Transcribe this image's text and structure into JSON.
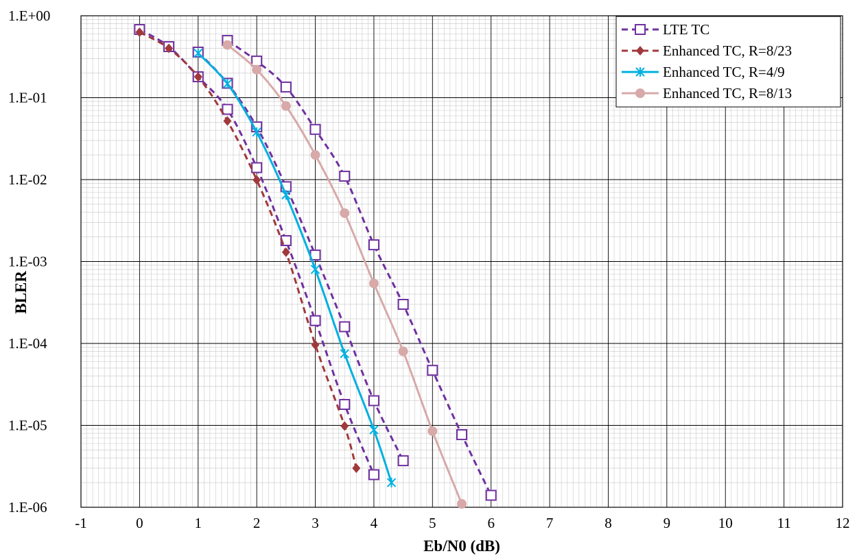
{
  "chart_data": {
    "type": "line",
    "title": "",
    "xlabel": "Eb/N0 (dB)",
    "ylabel": "BLER",
    "xscale": "linear",
    "yscale": "log",
    "xlim": [
      -1,
      12
    ],
    "ylim": [
      1e-06,
      1
    ],
    "x_ticks": [
      "-1",
      "0",
      "1",
      "2",
      "3",
      "4",
      "5",
      "6",
      "7",
      "8",
      "9",
      "10",
      "11",
      "12"
    ],
    "y_ticks": [
      "1.E-06",
      "1.E-05",
      "1.E-04",
      "1.E-03",
      "1.E-02",
      "1.E-01",
      "1.E+00"
    ],
    "grid": "major and minor",
    "legend_position": "top-right",
    "series": [
      {
        "name": "LTE TC",
        "color": "#7030A0",
        "line": "dashed",
        "marker": "open-square",
        "curves": [
          [
            [
              0,
              0.68
            ],
            [
              0.5,
              0.42
            ],
            [
              1,
              0.18
            ],
            [
              1.5,
              0.072
            ],
            [
              2,
              0.014
            ],
            [
              2.5,
              0.0018
            ],
            [
              3,
              0.00019
            ],
            [
              3.5,
              1.8e-05
            ],
            [
              4,
              2.5e-06
            ]
          ],
          [
            [
              1,
              0.36
            ],
            [
              1.5,
              0.15
            ],
            [
              2,
              0.044
            ],
            [
              2.5,
              0.0082
            ],
            [
              3,
              0.0012
            ],
            [
              3.5,
              0.00016
            ],
            [
              4,
              2e-05
            ],
            [
              4.5,
              3.7e-06
            ]
          ],
          [
            [
              1.5,
              0.5
            ],
            [
              2,
              0.28
            ],
            [
              2.5,
              0.135
            ],
            [
              3,
              0.041
            ],
            [
              3.5,
              0.011
            ],
            [
              4,
              0.0016
            ],
            [
              4.5,
              0.0003
            ],
            [
              5,
              4.7e-05
            ],
            [
              5.5,
              7.7e-06
            ],
            [
              6,
              1.4e-06
            ]
          ]
        ]
      },
      {
        "name": "Enhanced TC, R=8/23",
        "color": "#A0393C",
        "line": "dashed",
        "marker": "filled-diamond",
        "curves": [
          [
            [
              0,
              0.63
            ],
            [
              0.5,
              0.4
            ],
            [
              1,
              0.18
            ],
            [
              1.5,
              0.052
            ],
            [
              2,
              0.0099
            ],
            [
              2.5,
              0.0013
            ],
            [
              3,
              9.6e-05
            ],
            [
              3.5,
              9.8e-06
            ],
            [
              3.7,
              3e-06
            ]
          ]
        ]
      },
      {
        "name": "Enhanced TC, R=4/9",
        "color": "#00B0E0",
        "line": "solid",
        "marker": "asterisk",
        "curves": [
          [
            [
              1,
              0.35
            ],
            [
              1.5,
              0.148
            ],
            [
              2,
              0.038
            ],
            [
              2.5,
              0.0065
            ],
            [
              3,
              0.0008
            ],
            [
              3.5,
              7.5e-05
            ],
            [
              4,
              8.8e-06
            ],
            [
              4.3,
              2e-06
            ]
          ]
        ]
      },
      {
        "name": "Enhanced TC, R=8/13",
        "color": "#D8A9A9",
        "line": "solid",
        "marker": "filled-circle",
        "curves": [
          [
            [
              1.5,
              0.44
            ],
            [
              2,
              0.22
            ],
            [
              2.5,
              0.079
            ],
            [
              3,
              0.02
            ],
            [
              3.5,
              0.0039
            ],
            [
              4,
              0.00054
            ],
            [
              4.5,
              8e-05
            ],
            [
              5,
              8.5e-06
            ],
            [
              5.5,
              1.1e-06
            ]
          ]
        ]
      }
    ]
  }
}
